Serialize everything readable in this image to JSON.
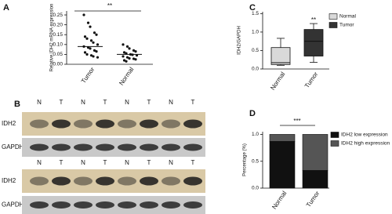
{
  "panel_labels": [
    "A",
    "B",
    "C",
    "D"
  ],
  "chart_data": [
    {
      "type": "strip",
      "y_label": "Relative IDH2 mRNA expression",
      "annotation": "**",
      "categories": [
        "Tumor",
        "Normal"
      ],
      "values": [
        [
          0.25,
          0.21,
          0.19,
          0.16,
          0.15,
          0.14,
          0.13,
          0.12,
          0.11,
          0.1,
          0.09,
          0.085,
          0.08,
          0.07,
          0.065,
          0.06,
          0.05,
          0.045,
          0.04,
          0.035
        ],
        [
          0.1,
          0.09,
          0.08,
          0.07,
          0.065,
          0.06,
          0.055,
          0.05,
          0.048,
          0.045,
          0.04,
          0.035,
          0.03,
          0.028,
          0.025,
          0.02,
          0.015
        ]
      ],
      "means": [
        0.09,
        0.05
      ],
      "color": "#111111",
      "ylim": [
        0,
        0.27
      ],
      "yticks": [
        {
          "value": 0,
          "label": "0.00"
        },
        0.05,
        {
          "value": 0.1,
          "label": "0.10"
        },
        0.15,
        {
          "value": 0.2,
          "label": "0.20"
        },
        0.25
      ]
    },
    {
      "type": "box",
      "y_label": "IDH2/GAPDH",
      "annotation": "**",
      "categories": [
        "Normal",
        "Tumor"
      ],
      "series": [
        {
          "name": "Normal",
          "color": "#d9d9d9",
          "box": [
            0.1,
            0.12,
            0.17,
            0.58,
            0.83
          ]
        },
        {
          "name": "Tumor",
          "color": "#333333",
          "box": [
            0.18,
            0.35,
            0.75,
            1.07,
            1.23
          ]
        }
      ],
      "legend": true,
      "ylim": [
        0,
        1.55
      ],
      "yticks": [
        {
          "value": 0,
          "label": "0.0"
        },
        0.5,
        {
          "value": 1,
          "label": "1.0"
        },
        1.5
      ]
    },
    {
      "type": "stacked_bar",
      "y_label": "Percentage (%)",
      "annotation": "***",
      "categories": [
        "Normal",
        "Tumor"
      ],
      "series": [
        {
          "name": "IDH2 low expression",
          "color": "#111111",
          "values": [
            0.87,
            0.33
          ]
        },
        {
          "name": "IDH2 high expression",
          "color": "#555555",
          "values": [
            0.13,
            0.67
          ]
        }
      ],
      "legend": true,
      "ylim": [
        0,
        1.05
      ],
      "yticks": [
        {
          "value": 0,
          "label": "0.0"
        },
        0.5,
        {
          "value": 1,
          "label": "1.0"
        }
      ]
    }
  ],
  "blot": {
    "rows": [
      {
        "lanes": [
          "N",
          "T",
          "N",
          "T",
          "N",
          "T",
          "N",
          "T"
        ],
        "bands": [
          "IDH2",
          "GAPDH"
        ]
      },
      {
        "lanes": [
          "N",
          "T",
          "N",
          "T",
          "N",
          "T",
          "N",
          "T"
        ],
        "bands": [
          "IDH2",
          "GAPDH"
        ]
      }
    ]
  }
}
